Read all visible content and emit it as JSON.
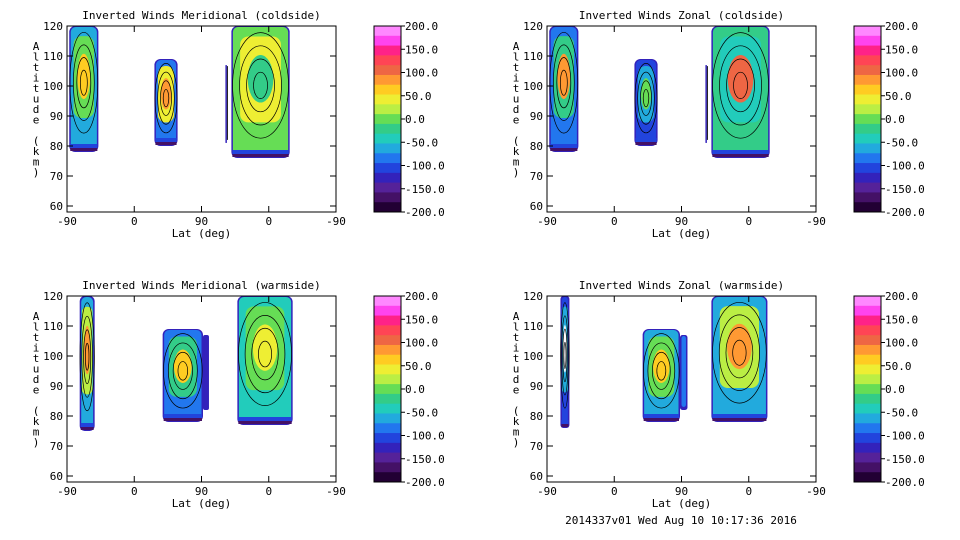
{
  "footer": "2014337v01 Wed Aug 10 10:17:36 2016",
  "colorbar": {
    "labels": [
      "200.0",
      "150.0",
      "100.0",
      "50.0",
      "0.0",
      "-50.0",
      "-100.0",
      "-150.0",
      "-200.0"
    ],
    "colors": [
      "#ff88ff",
      "#ff44ee",
      "#ff2288",
      "#ff4455",
      "#ee6644",
      "#ff9933",
      "#ffcc22",
      "#eeee33",
      "#bbee44",
      "#66dd55",
      "#33cc88",
      "#22ccbb",
      "#22aadd",
      "#2277ee",
      "#2244dd",
      "#3322bb",
      "#552299",
      "#441166",
      "#220033"
    ]
  },
  "panels": [
    {
      "title": "Inverted Winds Meridional (coldside)",
      "xlabel": "Lat (deg)",
      "ylabel": "Altitude (km)"
    },
    {
      "title": "Inverted Winds Zonal (coldside)",
      "xlabel": "Lat (deg)",
      "ylabel": "Altitude (km)"
    },
    {
      "title": "Inverted Winds Meridional (warmside)",
      "xlabel": "Lat (deg)",
      "ylabel": "Altitude (km)"
    },
    {
      "title": "Inverted Winds Zonal (warmside)",
      "xlabel": "Lat (deg)",
      "ylabel": "Altitude (km)"
    }
  ],
  "chart_data": [
    {
      "type": "heatmap",
      "title": "Inverted Winds Meridional (coldside)",
      "xlabel": "Lat (deg)",
      "ylabel": "Altitude (km)",
      "xticks": [
        "-90",
        "0",
        "90",
        "0",
        "-90"
      ],
      "yticks": [
        "60",
        "70",
        "80",
        "90",
        "100",
        "110",
        "120"
      ],
      "ylim": [
        58,
        120
      ],
      "colorbar_range": [
        -200,
        200
      ],
      "data_regions": [
        {
          "x": [
            -87,
            -48
          ],
          "y": [
            78,
            120
          ]
        },
        {
          "x": [
            27,
            58
          ],
          "y": [
            80,
            109
          ]
        },
        {
          "x": [
            122,
            124
          ],
          "y": [
            81,
            107
          ]
        },
        {
          "x": [
            130,
            208
          ],
          "y": [
            76,
            120
          ]
        }
      ]
    },
    {
      "type": "heatmap",
      "title": "Inverted Winds Zonal (coldside)",
      "xlabel": "Lat (deg)",
      "ylabel": "Altitude (km)",
      "xticks": [
        "-90",
        "0",
        "90",
        "0",
        "-90"
      ],
      "yticks": [
        "60",
        "70",
        "80",
        "90",
        "100",
        "110",
        "120"
      ],
      "ylim": [
        58,
        120
      ],
      "colorbar_range": [
        -200,
        200
      ],
      "data_regions": [
        {
          "x": [
            -87,
            -48
          ],
          "y": [
            78,
            120
          ]
        },
        {
          "x": [
            27,
            58
          ],
          "y": [
            80,
            109
          ]
        },
        {
          "x": [
            122,
            124
          ],
          "y": [
            81,
            107
          ]
        },
        {
          "x": [
            130,
            208
          ],
          "y": [
            76,
            120
          ]
        }
      ]
    },
    {
      "type": "heatmap",
      "title": "Inverted Winds Meridional (warmside)",
      "xlabel": "Lat (deg)",
      "ylabel": "Altitude (km)",
      "xticks": [
        "-90",
        "0",
        "90",
        "0",
        "-90"
      ],
      "yticks": [
        "60",
        "70",
        "80",
        "90",
        "100",
        "110",
        "120"
      ],
      "ylim": [
        58,
        120
      ],
      "colorbar_range": [
        -200,
        200
      ],
      "data_regions": [
        {
          "x": [
            -73,
            -53
          ],
          "y": [
            75,
            120
          ]
        },
        {
          "x": [
            38,
            92
          ],
          "y": [
            78,
            109
          ]
        },
        {
          "x": [
            92,
            100
          ],
          "y": [
            82,
            107
          ]
        },
        {
          "x": [
            138,
            212
          ],
          "y": [
            77,
            120
          ]
        }
      ]
    },
    {
      "type": "heatmap",
      "title": "Inverted Winds Zonal (warmside)",
      "xlabel": "Lat (deg)",
      "ylabel": "Altitude (km)",
      "xticks": [
        "-90",
        "0",
        "90",
        "0",
        "-90"
      ],
      "yticks": [
        "60",
        "70",
        "80",
        "90",
        "100",
        "110",
        "120"
      ],
      "ylim": [
        58,
        120
      ],
      "colorbar_range": [
        -200,
        200
      ],
      "data_regions": [
        {
          "x": [
            -72,
            -60
          ],
          "y": [
            76,
            120
          ]
        },
        {
          "x": [
            38,
            88
          ],
          "y": [
            78,
            109
          ]
        },
        {
          "x": [
            88,
            98
          ],
          "y": [
            82,
            107
          ]
        },
        {
          "x": [
            130,
            205
          ],
          "y": [
            78,
            120
          ]
        }
      ]
    }
  ]
}
